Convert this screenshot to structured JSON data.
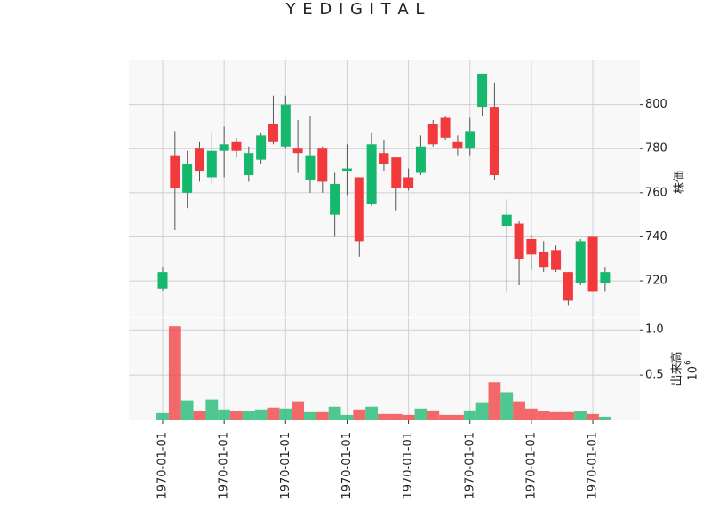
{
  "chart_data": {
    "type": "candlestick",
    "title": "Y E D I G I T A L",
    "ylabel": "株価",
    "categories": [
      "1970-01-01",
      null,
      null,
      null,
      null,
      "1970-01-01",
      null,
      null,
      null,
      null,
      "1970-01-01",
      null,
      null,
      null,
      null,
      "1970-01-01",
      null,
      null,
      null,
      null,
      "1970-01-01",
      null,
      null,
      null,
      null,
      "1970-01-01",
      null,
      null,
      null,
      null,
      "1970-01-01",
      null,
      null,
      null,
      null,
      "1970-01-01",
      null
    ],
    "open": [
      716.5,
      777,
      760,
      780,
      767,
      779,
      783,
      768,
      775,
      791,
      781,
      780,
      766,
      780,
      750,
      770,
      767,
      755,
      778,
      776,
      767,
      769,
      791,
      794,
      783,
      780,
      799,
      799,
      745,
      746,
      739,
      733,
      734,
      724,
      719,
      740,
      719
    ],
    "high": [
      726.5,
      788,
      779,
      783,
      787,
      790,
      785,
      781,
      787,
      804,
      804,
      793,
      795,
      781,
      769,
      782,
      767,
      787,
      784,
      776,
      771,
      786,
      793,
      795,
      786,
      794,
      814,
      810,
      757,
      747,
      741,
      738,
      736,
      724,
      739,
      740,
      726
    ],
    "low": [
      715.5,
      743,
      753,
      765,
      764,
      767,
      776,
      765,
      773,
      782,
      780,
      769,
      760,
      760,
      740,
      759,
      731,
      754,
      770,
      752,
      761,
      768,
      781,
      784,
      777,
      777,
      795,
      766,
      715,
      718,
      725,
      724,
      724,
      709,
      718,
      715,
      715
    ],
    "close": [
      724,
      762,
      773,
      770,
      779,
      782,
      779,
      778,
      786,
      783,
      800,
      778,
      777,
      765,
      764,
      771,
      738,
      782,
      773,
      762,
      762,
      781,
      782,
      785,
      780,
      788,
      814,
      768,
      750,
      730,
      732,
      726,
      725,
      711,
      738,
      715,
      724
    ],
    "up_color": "#16b86e",
    "down_color": "#f23a3c",
    "ylim": [
      703.5,
      820
    ],
    "yticks": [
      720,
      740,
      760,
      780,
      800
    ],
    "grid": true,
    "volume": {
      "ylabel": "出来高",
      "offset_base": "10",
      "offset_exponent": "6",
      "values": [
        0.08,
        1.04,
        0.22,
        0.1,
        0.23,
        0.12,
        0.1,
        0.1,
        0.12,
        0.14,
        0.13,
        0.21,
        0.09,
        0.09,
        0.15,
        0.06,
        0.12,
        0.15,
        0.07,
        0.07,
        0.06,
        0.13,
        0.11,
        0.06,
        0.06,
        0.11,
        0.2,
        0.42,
        0.31,
        0.21,
        0.13,
        0.1,
        0.09,
        0.09,
        0.1,
        0.07,
        0.04
      ],
      "ylim": [
        0,
        1.13
      ],
      "yticks": [
        {
          "value": 0.5,
          "label": "0.5"
        },
        {
          "value": 1,
          "label": "1.0"
        }
      ]
    }
  }
}
